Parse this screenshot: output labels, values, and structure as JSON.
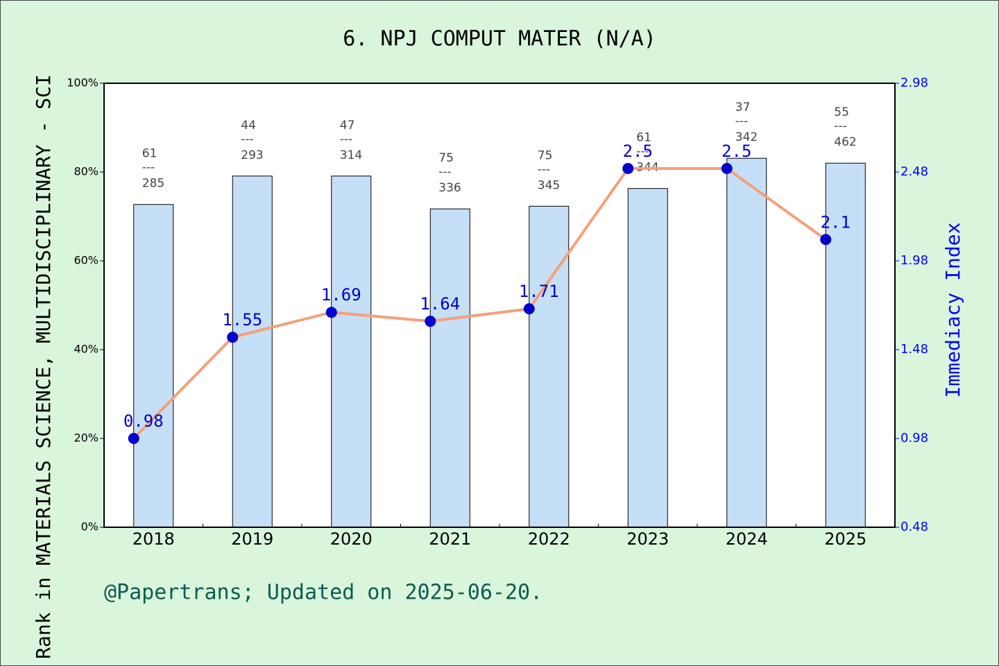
{
  "chart_data": {
    "type": "bar",
    "title": "6. NPJ COMPUT MATER (N/A)",
    "y_label": "Rank in MATERIALS SCIENCE, MULTIDISCIPLINARY - SCI",
    "y2_label": "Immediacy Index",
    "footer": "@Papertrans; Updated on 2025-06-20.",
    "categories": [
      "2018",
      "2019",
      "2020",
      "2021",
      "2022",
      "2023",
      "2024",
      "2025"
    ],
    "series": [
      {
        "type": "bar",
        "color": "#c5dff7",
        "values": [
          72.7,
          79.1,
          79.1,
          71.7,
          72.3,
          76.3,
          83.1,
          82.0
        ]
      },
      {
        "type": "line",
        "color": "#f4a07a",
        "axis": "y2",
        "marker_color": "#0000cc",
        "values": [
          0.98,
          1.55,
          1.69,
          1.64,
          1.71,
          2.5,
          2.5,
          2.1
        ]
      }
    ],
    "ranks": [
      61,
      44,
      47,
      75,
      75,
      61,
      37,
      55
    ],
    "totals": [
      285,
      293,
      314,
      336,
      345,
      344,
      342,
      462
    ],
    "separator": "---",
    "ylim": [
      0,
      100
    ],
    "yticks": [
      {
        "value": 0,
        "label": "0%"
      },
      {
        "value": 20,
        "label": "20%"
      },
      {
        "value": 40,
        "label": "40%"
      },
      {
        "value": 60,
        "label": "60%"
      },
      {
        "value": 80,
        "label": "80%"
      },
      {
        "value": 100,
        "label": "100%"
      }
    ],
    "y2lim": [
      0.48,
      2.98
    ],
    "y2ticks": [
      0.48,
      0.98,
      1.48,
      1.98,
      2.48,
      2.98
    ]
  }
}
